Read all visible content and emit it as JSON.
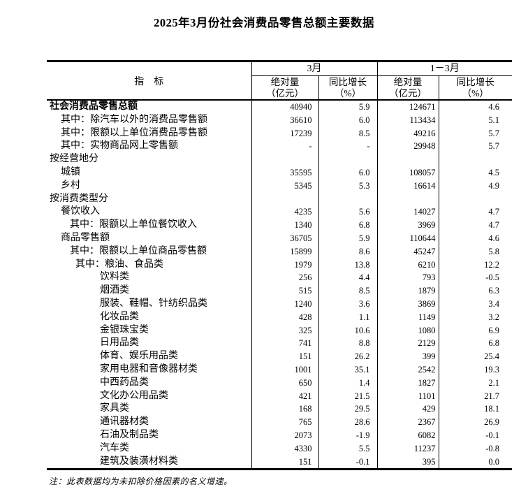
{
  "title": "2025年3月份社会消费品零售总额主要数据",
  "table": {
    "header": {
      "indicator": "指　标",
      "groups": [
        {
          "label": "3月",
          "columns": [
            {
              "line1": "绝对量",
              "line2": "（亿元）"
            },
            {
              "line1": "同比增长",
              "line2": "（%）"
            }
          ]
        },
        {
          "label": "1－3月",
          "columns": [
            {
              "line1": "绝对量",
              "line2": "（亿元）"
            },
            {
              "line1": "同比增长",
              "line2": "（%）"
            }
          ]
        }
      ]
    },
    "rows": [
      {
        "label": "社会消费品零售总额",
        "indent": 0,
        "bold": true,
        "values": [
          "40940",
          "5.9",
          "124671",
          "4.6"
        ]
      },
      {
        "label": "其中：除汽车以外的消费品零售额",
        "indent": 1,
        "bold": false,
        "values": [
          "36610",
          "6.0",
          "113434",
          "5.1"
        ]
      },
      {
        "label": "其中：限额以上单位消费品零售额",
        "indent": 1,
        "bold": false,
        "values": [
          "17239",
          "8.5",
          "49216",
          "5.7"
        ]
      },
      {
        "label": "其中：实物商品网上零售额",
        "indent": 1,
        "bold": false,
        "values": [
          "-",
          "-",
          "29948",
          "5.7"
        ]
      },
      {
        "label": "按经营地分",
        "indent": 0,
        "bold": false,
        "values": [
          "",
          "",
          "",
          ""
        ]
      },
      {
        "label": "城镇",
        "indent": 1,
        "bold": false,
        "values": [
          "35595",
          "6.0",
          "108057",
          "4.5"
        ]
      },
      {
        "label": "乡村",
        "indent": 1,
        "bold": false,
        "values": [
          "5345",
          "5.3",
          "16614",
          "4.9"
        ]
      },
      {
        "label": "按消费类型分",
        "indent": 0,
        "bold": false,
        "values": [
          "",
          "",
          "",
          ""
        ]
      },
      {
        "label": "餐饮收入",
        "indent": 1,
        "bold": false,
        "values": [
          "4235",
          "5.6",
          "14027",
          "4.7"
        ]
      },
      {
        "label": "其中：限额以上单位餐饮收入",
        "indent": 2,
        "bold": false,
        "values": [
          "1340",
          "6.8",
          "3969",
          "4.7"
        ]
      },
      {
        "label": "商品零售额",
        "indent": 1,
        "bold": false,
        "values": [
          "36705",
          "5.9",
          "110644",
          "4.6"
        ]
      },
      {
        "label": "其中：限额以上单位商品零售额",
        "indent": 2,
        "bold": false,
        "values": [
          "15899",
          "8.6",
          "45247",
          "5.8"
        ]
      },
      {
        "label": "其中：粮油、食品类",
        "indent": 3,
        "bold": false,
        "values": [
          "1979",
          "13.8",
          "6210",
          "12.2"
        ]
      },
      {
        "label": "饮料类",
        "indent": 4,
        "bold": false,
        "values": [
          "256",
          "4.4",
          "793",
          "-0.5"
        ]
      },
      {
        "label": "烟酒类",
        "indent": 4,
        "bold": false,
        "values": [
          "515",
          "8.5",
          "1879",
          "6.3"
        ]
      },
      {
        "label": "服装、鞋帽、针纺织品类",
        "indent": 4,
        "bold": false,
        "values": [
          "1240",
          "3.6",
          "3869",
          "3.4"
        ]
      },
      {
        "label": "化妆品类",
        "indent": 4,
        "bold": false,
        "values": [
          "428",
          "1.1",
          "1149",
          "3.2"
        ]
      },
      {
        "label": "金银珠宝类",
        "indent": 4,
        "bold": false,
        "values": [
          "325",
          "10.6",
          "1080",
          "6.9"
        ]
      },
      {
        "label": "日用品类",
        "indent": 4,
        "bold": false,
        "values": [
          "741",
          "8.8",
          "2129",
          "6.8"
        ]
      },
      {
        "label": "体育、娱乐用品类",
        "indent": 4,
        "bold": false,
        "values": [
          "151",
          "26.2",
          "399",
          "25.4"
        ]
      },
      {
        "label": "家用电器和音像器材类",
        "indent": 4,
        "bold": false,
        "values": [
          "1001",
          "35.1",
          "2542",
          "19.3"
        ]
      },
      {
        "label": "中西药品类",
        "indent": 4,
        "bold": false,
        "values": [
          "650",
          "1.4",
          "1827",
          "2.1"
        ]
      },
      {
        "label": "文化办公用品类",
        "indent": 4,
        "bold": false,
        "values": [
          "421",
          "21.5",
          "1101",
          "21.7"
        ]
      },
      {
        "label": "家具类",
        "indent": 4,
        "bold": false,
        "values": [
          "168",
          "29.5",
          "429",
          "18.1"
        ]
      },
      {
        "label": "通讯器材类",
        "indent": 4,
        "bold": false,
        "values": [
          "765",
          "28.6",
          "2367",
          "26.9"
        ]
      },
      {
        "label": "石油及制品类",
        "indent": 4,
        "bold": false,
        "values": [
          "2073",
          "-1.9",
          "6082",
          "-0.1"
        ]
      },
      {
        "label": "汽车类",
        "indent": 4,
        "bold": false,
        "values": [
          "4330",
          "5.5",
          "11237",
          "-0.8"
        ]
      },
      {
        "label": "建筑及装潢材料类",
        "indent": 4,
        "bold": false,
        "values": [
          "151",
          "-0.1",
          "395",
          "0.0"
        ]
      }
    ]
  },
  "note": "注：此表数据均为未扣除价格因素的名义增速。",
  "colors": {
    "text": "#000000",
    "background": "#ffffff",
    "rule": "#000000"
  }
}
